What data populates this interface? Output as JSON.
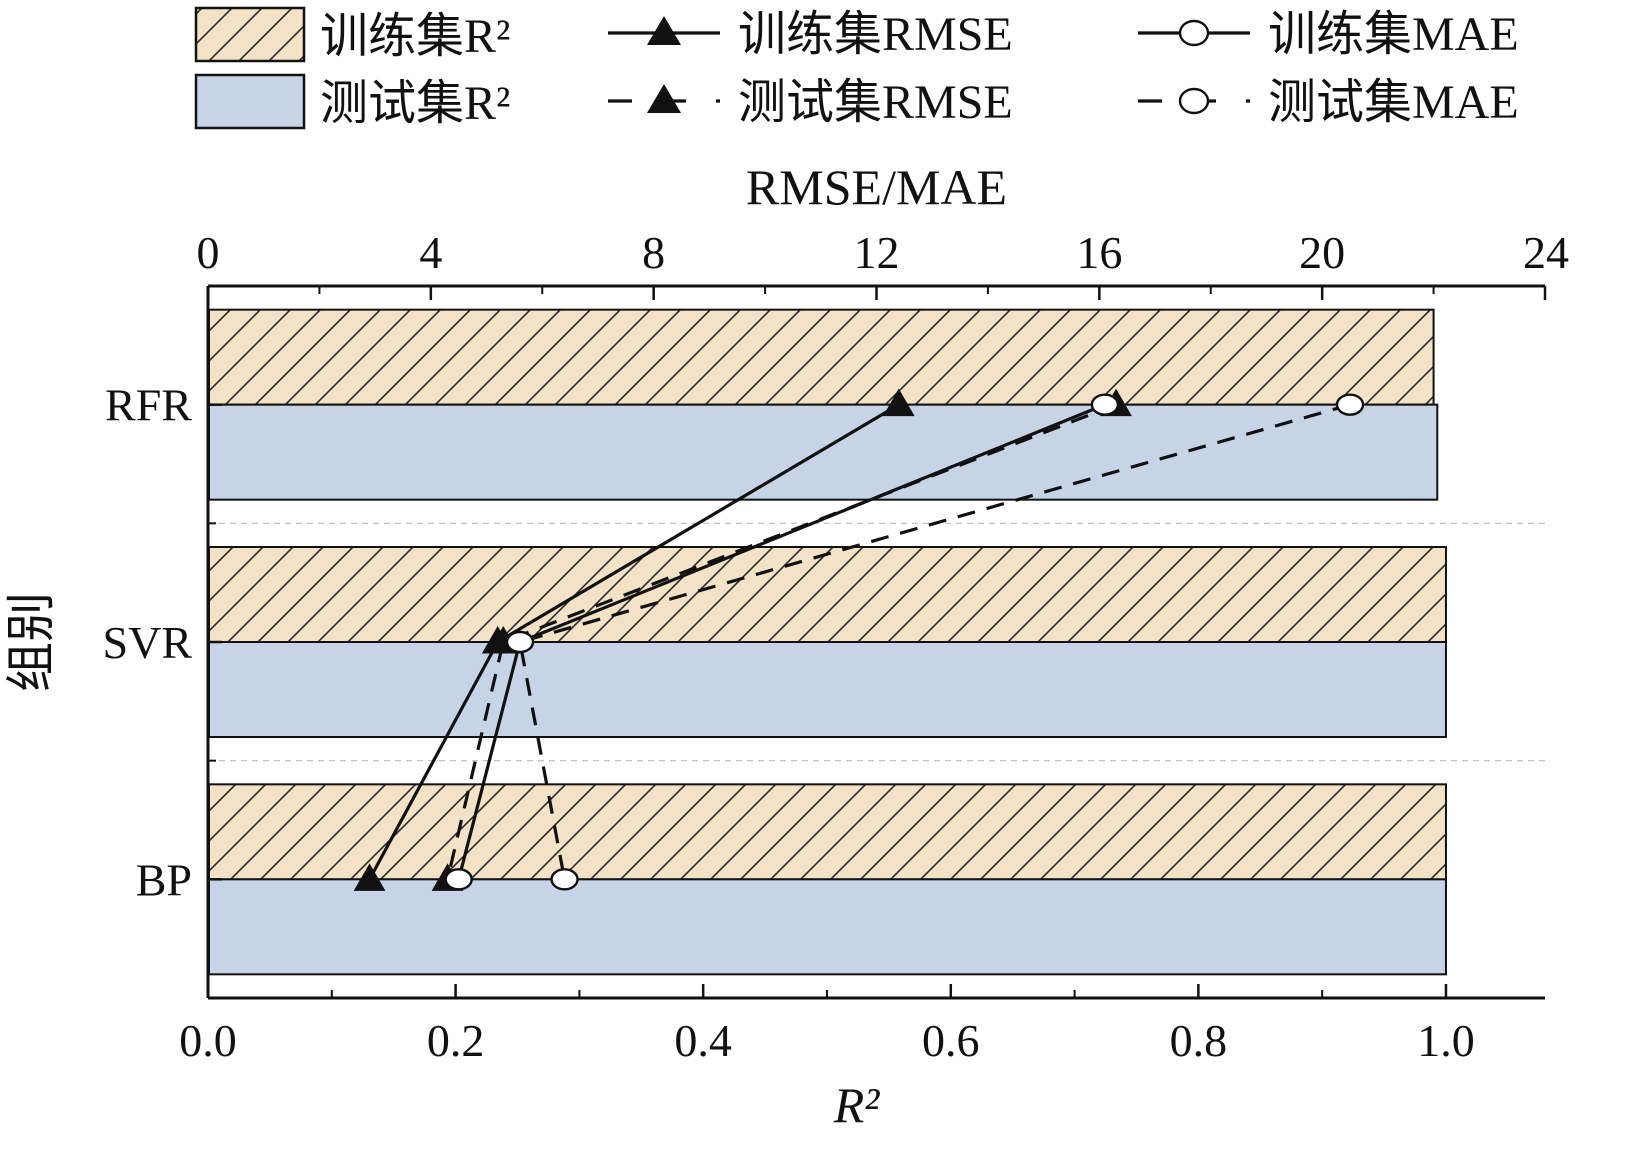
{
  "chart_data": {
    "type": "bar",
    "orientation": "horizontal",
    "categories": [
      "RFR",
      "SVR",
      "BP"
    ],
    "bar_series": [
      {
        "name": "训练集R²",
        "values": [
          0.99,
          1.0,
          1.0
        ],
        "fill": "#f3e2c5",
        "pattern": "hatch"
      },
      {
        "name": "测试集R²",
        "values": [
          0.993,
          1.0,
          1.0
        ],
        "fill": "#c7d4e8",
        "pattern": "none"
      }
    ],
    "line_series": [
      {
        "name": "训练集RMSE",
        "values": [
          12.4,
          5.2,
          2.9
        ],
        "line": "solid",
        "marker": "triangle-filled"
      },
      {
        "name": "测试集RMSE",
        "values": [
          16.3,
          5.3,
          4.3
        ],
        "line": "dashed",
        "marker": "triangle-filled"
      },
      {
        "name": "训练集MAE",
        "values": [
          16.1,
          5.6,
          4.5
        ],
        "line": "solid",
        "marker": "circle-open"
      },
      {
        "name": "测试集MAE",
        "values": [
          20.5,
          5.6,
          6.4
        ],
        "line": "dashed",
        "marker": "circle-open"
      }
    ],
    "x_bottom": {
      "label": "R²",
      "range": [
        0.0,
        1.08
      ],
      "ticks": [
        "0.0",
        "0.2",
        "0.4",
        "0.6",
        "0.8",
        "1.0"
      ],
      "tick_values": [
        0,
        0.2,
        0.4,
        0.6,
        0.8,
        1.0
      ]
    },
    "x_top": {
      "label": "RMSE/MAE",
      "range": [
        0,
        24
      ],
      "ticks": [
        "0",
        "4",
        "8",
        "12",
        "16",
        "20",
        "24"
      ],
      "tick_values": [
        0,
        4,
        8,
        12,
        16,
        20,
        24
      ]
    },
    "y": {
      "label": "组别"
    },
    "legend_position": "top",
    "grid": false
  }
}
